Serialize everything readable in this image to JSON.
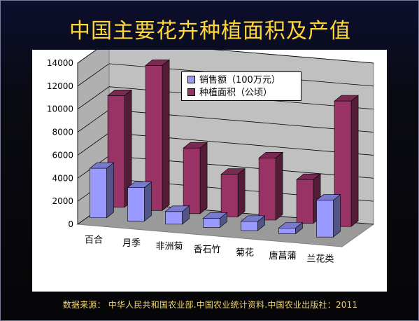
{
  "title": "中国主要花卉种植面积及产值",
  "footer": "数据来源： 中华人民共和国农业部.中国农业统计资料.中国农业出版社：2011",
  "chart_data": {
    "type": "bar",
    "subtype": "3d-clustered-column",
    "categories": [
      "百合",
      "月季",
      "非洲菊",
      "香石竹",
      "菊花",
      "唐菖蒲",
      "兰花类"
    ],
    "series": [
      {
        "name": "销售额（100万元）",
        "color": "#9999ff",
        "values": [
          4300,
          2900,
          1100,
          800,
          800,
          500,
          3200
        ]
      },
      {
        "name": "种植面积（公顷）",
        "color": "#993366",
        "values": [
          9700,
          12600,
          5700,
          3700,
          5400,
          3800,
          10900
        ]
      }
    ],
    "ylim": [
      0,
      14000
    ],
    "yticks": [
      "0",
      "2000",
      "4000",
      "6000",
      "8000",
      "10000",
      "12000",
      "14000"
    ],
    "grid": true,
    "legend_position": "top-center"
  }
}
